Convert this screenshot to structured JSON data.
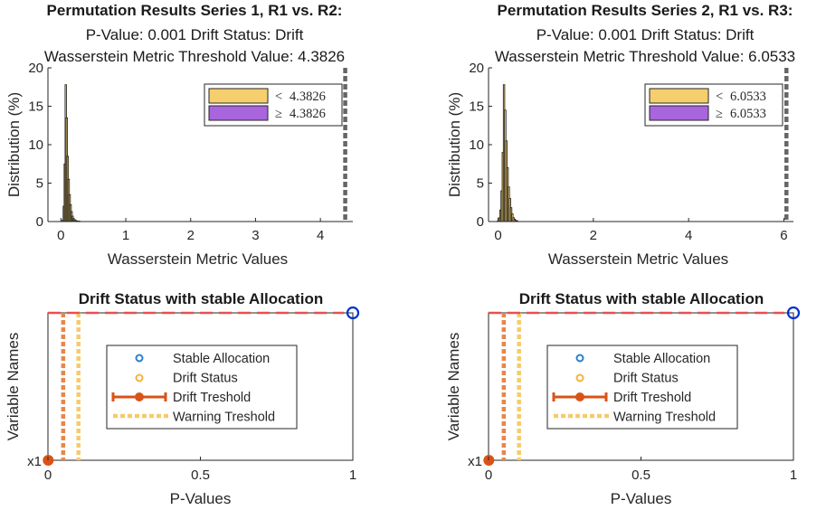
{
  "chart_data": [
    {
      "type": "bar",
      "title": "Permutation Results Series 1, R1 vs. R2:",
      "subtitle_lines": [
        "P-Value: 0.001 Drift Status: Drift",
        "Wasserstein Metric Threshold Value: 4.3826"
      ],
      "xlabel": "Wasserstein Metric Values",
      "ylabel": "Distribution (%)",
      "xlim": [
        -0.2,
        4.5
      ],
      "ylim": [
        0,
        20
      ],
      "xticks": [
        0,
        1,
        2,
        3,
        4
      ],
      "yticks": [
        0,
        5,
        10,
        15,
        20
      ],
      "grid": false,
      "threshold": 4.3826,
      "bins": [
        {
          "x": 0.03,
          "value": 0.2
        },
        {
          "x": 0.045,
          "value": 2.0
        },
        {
          "x": 0.06,
          "value": 7.5
        },
        {
          "x": 0.075,
          "value": 17.8
        },
        {
          "x": 0.09,
          "value": 13.5
        },
        {
          "x": 0.105,
          "value": 8.5
        },
        {
          "x": 0.12,
          "value": 5.5
        },
        {
          "x": 0.135,
          "value": 3.5
        },
        {
          "x": 0.15,
          "value": 2.2
        },
        {
          "x": 0.165,
          "value": 1.3
        },
        {
          "x": 0.18,
          "value": 0.7
        },
        {
          "x": 0.195,
          "value": 0.4
        },
        {
          "x": 0.21,
          "value": 0.25
        },
        {
          "x": 0.225,
          "value": 0.15
        },
        {
          "x": 0.24,
          "value": 0.1
        },
        {
          "x": 0.255,
          "value": 0.05
        },
        {
          "x": 0.27,
          "value": 0.05
        },
        {
          "x": 0.285,
          "value": 0.05
        }
      ],
      "legend": {
        "position": "top-right",
        "entries": [
          {
            "symbol": "<",
            "value": "4.3826",
            "color": "#f5cf6e"
          },
          {
            "symbol": "≥",
            "value": "4.3826",
            "color": "#a965dd"
          }
        ]
      }
    },
    {
      "type": "bar",
      "title": "Permutation Results Series 2, R1 vs. R3:",
      "subtitle_lines": [
        "P-Value: 0.001 Drift Status: Drift",
        "Wasserstein Metric Threshold Value: 6.0533"
      ],
      "xlabel": "Wasserstein Metric Values",
      "ylabel": "Distribution (%)",
      "xlim": [
        -0.2,
        6.2
      ],
      "ylim": [
        0,
        20
      ],
      "xticks": [
        0,
        2,
        4,
        6
      ],
      "yticks": [
        0,
        5,
        10,
        15,
        20
      ],
      "grid": false,
      "threshold": 6.0533,
      "bins": [
        {
          "x": 0.0,
          "value": 0.1
        },
        {
          "x": 0.025,
          "value": 0.5
        },
        {
          "x": 0.05,
          "value": 1.5
        },
        {
          "x": 0.075,
          "value": 4.0
        },
        {
          "x": 0.1,
          "value": 9.0
        },
        {
          "x": 0.125,
          "value": 17.8
        },
        {
          "x": 0.15,
          "value": 14.5
        },
        {
          "x": 0.175,
          "value": 10.5
        },
        {
          "x": 0.2,
          "value": 7.0
        },
        {
          "x": 0.225,
          "value": 4.5
        },
        {
          "x": 0.25,
          "value": 3.0
        },
        {
          "x": 0.275,
          "value": 1.8
        },
        {
          "x": 0.3,
          "value": 1.0
        },
        {
          "x": 0.325,
          "value": 0.5
        },
        {
          "x": 0.35,
          "value": 0.3
        },
        {
          "x": 0.375,
          "value": 0.15
        },
        {
          "x": 0.4,
          "value": 0.1
        }
      ],
      "legend": {
        "position": "top-right",
        "entries": [
          {
            "symbol": "<",
            "value": "6.0533",
            "color": "#f5cf6e"
          },
          {
            "symbol": "≥",
            "value": "6.0533",
            "color": "#a965dd"
          }
        ]
      }
    },
    {
      "type": "scatter",
      "title": "Drift Status with stable Allocation",
      "xlabel": "P-Values",
      "ylabel": "Variable Names",
      "xlim": [
        0,
        1
      ],
      "xticks": [
        0,
        0.5,
        1
      ],
      "xtick_labels": [
        "0",
        "0.5",
        "1"
      ],
      "ytick_labels": [
        "x1"
      ],
      "grid": false,
      "stable_allocation": [
        {
          "x": 1,
          "variable": "x1"
        }
      ],
      "drift_status": [
        {
          "x": 0.001,
          "variable": "x1"
        }
      ],
      "drift_threshold": 0.05,
      "warning_threshold": 0.1,
      "legend": {
        "position": "center",
        "entries": [
          "Stable Allocation",
          "Drift Status",
          "Drift Treshold",
          "Warning Treshold"
        ]
      },
      "colors": {
        "stable": "#0033cc",
        "drift": "#d95319",
        "drift_line": "#e8864a",
        "warning_line": "#f5cc6a",
        "top_line": "#e85050"
      }
    },
    {
      "type": "scatter",
      "title": "Drift Status with stable Allocation",
      "xlabel": "P-Values",
      "ylabel": "Variable Names",
      "xlim": [
        0,
        1
      ],
      "xticks": [
        0,
        0.5,
        1
      ],
      "xtick_labels": [
        "0",
        "0.5",
        "1"
      ],
      "ytick_labels": [
        "x1"
      ],
      "grid": false,
      "stable_allocation": [
        {
          "x": 1,
          "variable": "x1"
        }
      ],
      "drift_status": [
        {
          "x": 0.001,
          "variable": "x1"
        }
      ],
      "drift_threshold": 0.05,
      "warning_threshold": 0.1,
      "legend": {
        "position": "center",
        "entries": [
          "Stable Allocation",
          "Drift Status",
          "Drift Treshold",
          "Warning Treshold"
        ]
      },
      "colors": {
        "stable": "#0033cc",
        "drift": "#d95319",
        "drift_line": "#e8864a",
        "warning_line": "#f5cc6a",
        "top_line": "#e85050"
      }
    }
  ]
}
